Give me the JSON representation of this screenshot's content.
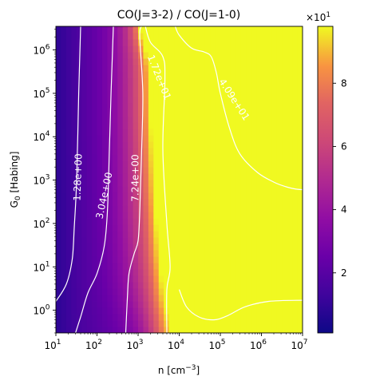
{
  "chart_data": {
    "type": "heatmap",
    "title": "CO(J=3-2) / CO(J=1-0)",
    "xlabel": "n [cm",
    "xlabel_sup": "−3",
    "xlabel_close": "]",
    "ylabel": "G",
    "ylabel_sub": "0",
    "ylabel_rest": " [Habing]",
    "x_scale": "log",
    "y_scale": "log",
    "xlim": [
      10,
      10000000
    ],
    "ylim": [
      0.3,
      3500000
    ],
    "x_ticks": [
      {
        "base": "10",
        "exp": "1",
        "value": 10
      },
      {
        "base": "10",
        "exp": "2",
        "value": 100
      },
      {
        "base": "10",
        "exp": "3",
        "value": 1000
      },
      {
        "base": "10",
        "exp": "4",
        "value": 10000
      },
      {
        "base": "10",
        "exp": "5",
        "value": 100000
      },
      {
        "base": "10",
        "exp": "6",
        "value": 1000000
      },
      {
        "base": "10",
        "exp": "7",
        "value": 10000000
      }
    ],
    "y_ticks": [
      {
        "base": "10",
        "exp": "0",
        "value": 1
      },
      {
        "base": "10",
        "exp": "1",
        "value": 10
      },
      {
        "base": "10",
        "exp": "2",
        "value": 100
      },
      {
        "base": "10",
        "exp": "3",
        "value": 1000
      },
      {
        "base": "10",
        "exp": "4",
        "value": 10000
      },
      {
        "base": "10",
        "exp": "5",
        "value": 100000
      },
      {
        "base": "10",
        "exp": "6",
        "value": 1000000
      }
    ],
    "colormap": "plasma",
    "colorbar": {
      "min": 0.1,
      "max": 9.8,
      "ticks": [
        {
          "label": "2",
          "value": 2
        },
        {
          "label": "4",
          "value": 4
        },
        {
          "label": "6",
          "value": 6
        },
        {
          "label": "8",
          "value": 8
        }
      ],
      "multiplier_base": "×10",
      "multiplier_exp": "1"
    },
    "contours": [
      {
        "label": "1.28e+00",
        "level": 1.28,
        "points": [
          [
            10,
            1.6
          ],
          [
            18,
            4
          ],
          [
            25,
            15
          ],
          [
            28,
            80
          ],
          [
            32,
            1000
          ],
          [
            36,
            100000
          ],
          [
            40,
            3500000
          ]
        ]
      },
      {
        "label": "3.04e+00",
        "level": 3.04,
        "points": [
          [
            30,
            0.3
          ],
          [
            40,
            0.7
          ],
          [
            60,
            2.5
          ],
          [
            100,
            7
          ],
          [
            150,
            30
          ],
          [
            180,
            200
          ],
          [
            200,
            5000
          ],
          [
            220,
            100000
          ],
          [
            250,
            3500000
          ]
        ]
      },
      {
        "label": "7.24e+00",
        "level": 7.24,
        "points": [
          [
            500,
            0.3
          ],
          [
            550,
            2
          ],
          [
            600,
            7
          ],
          [
            800,
            20
          ],
          [
            1000,
            40
          ],
          [
            1100,
            200
          ],
          [
            1200,
            3000
          ],
          [
            1300,
            100000
          ],
          [
            1100,
            2000000
          ],
          [
            1200,
            3500000
          ]
        ]
      },
      {
        "label": "1.72e+01",
        "level": 17.2,
        "points": [
          [
            5000,
            0.3
          ],
          [
            5000,
            3
          ],
          [
            6000,
            10
          ],
          [
            5000,
            100
          ],
          [
            4000,
            5000
          ],
          [
            4500,
            200000
          ],
          [
            4000,
            700000
          ],
          [
            2000,
            1500000
          ],
          [
            1500,
            3500000
          ]
        ]
      },
      {
        "label": "4.09e+01",
        "level": 40.9,
        "points": [
          [
            10000,
            3
          ],
          [
            15000,
            1.2
          ],
          [
            30000,
            0.7
          ],
          [
            70000,
            0.6
          ],
          [
            150000,
            0.75
          ],
          [
            400000,
            1.2
          ],
          [
            1500000,
            1.6
          ],
          [
            10000000,
            1.7
          ]
        ]
      },
      {
        "label": "",
        "level": 40.9,
        "points": [
          [
            10000000,
            600
          ],
          [
            7000000,
            620
          ],
          [
            4000000,
            700
          ],
          [
            2000000,
            900
          ],
          [
            800000,
            1500
          ],
          [
            300000,
            4000
          ],
          [
            170000,
            15000
          ],
          [
            100000,
            100000
          ],
          [
            80000,
            300000
          ],
          [
            60000,
            700000
          ],
          [
            40000,
            900000
          ],
          [
            20000,
            1100000
          ],
          [
            10000,
            2200000
          ],
          [
            8000,
            3500000
          ]
        ]
      }
    ]
  }
}
